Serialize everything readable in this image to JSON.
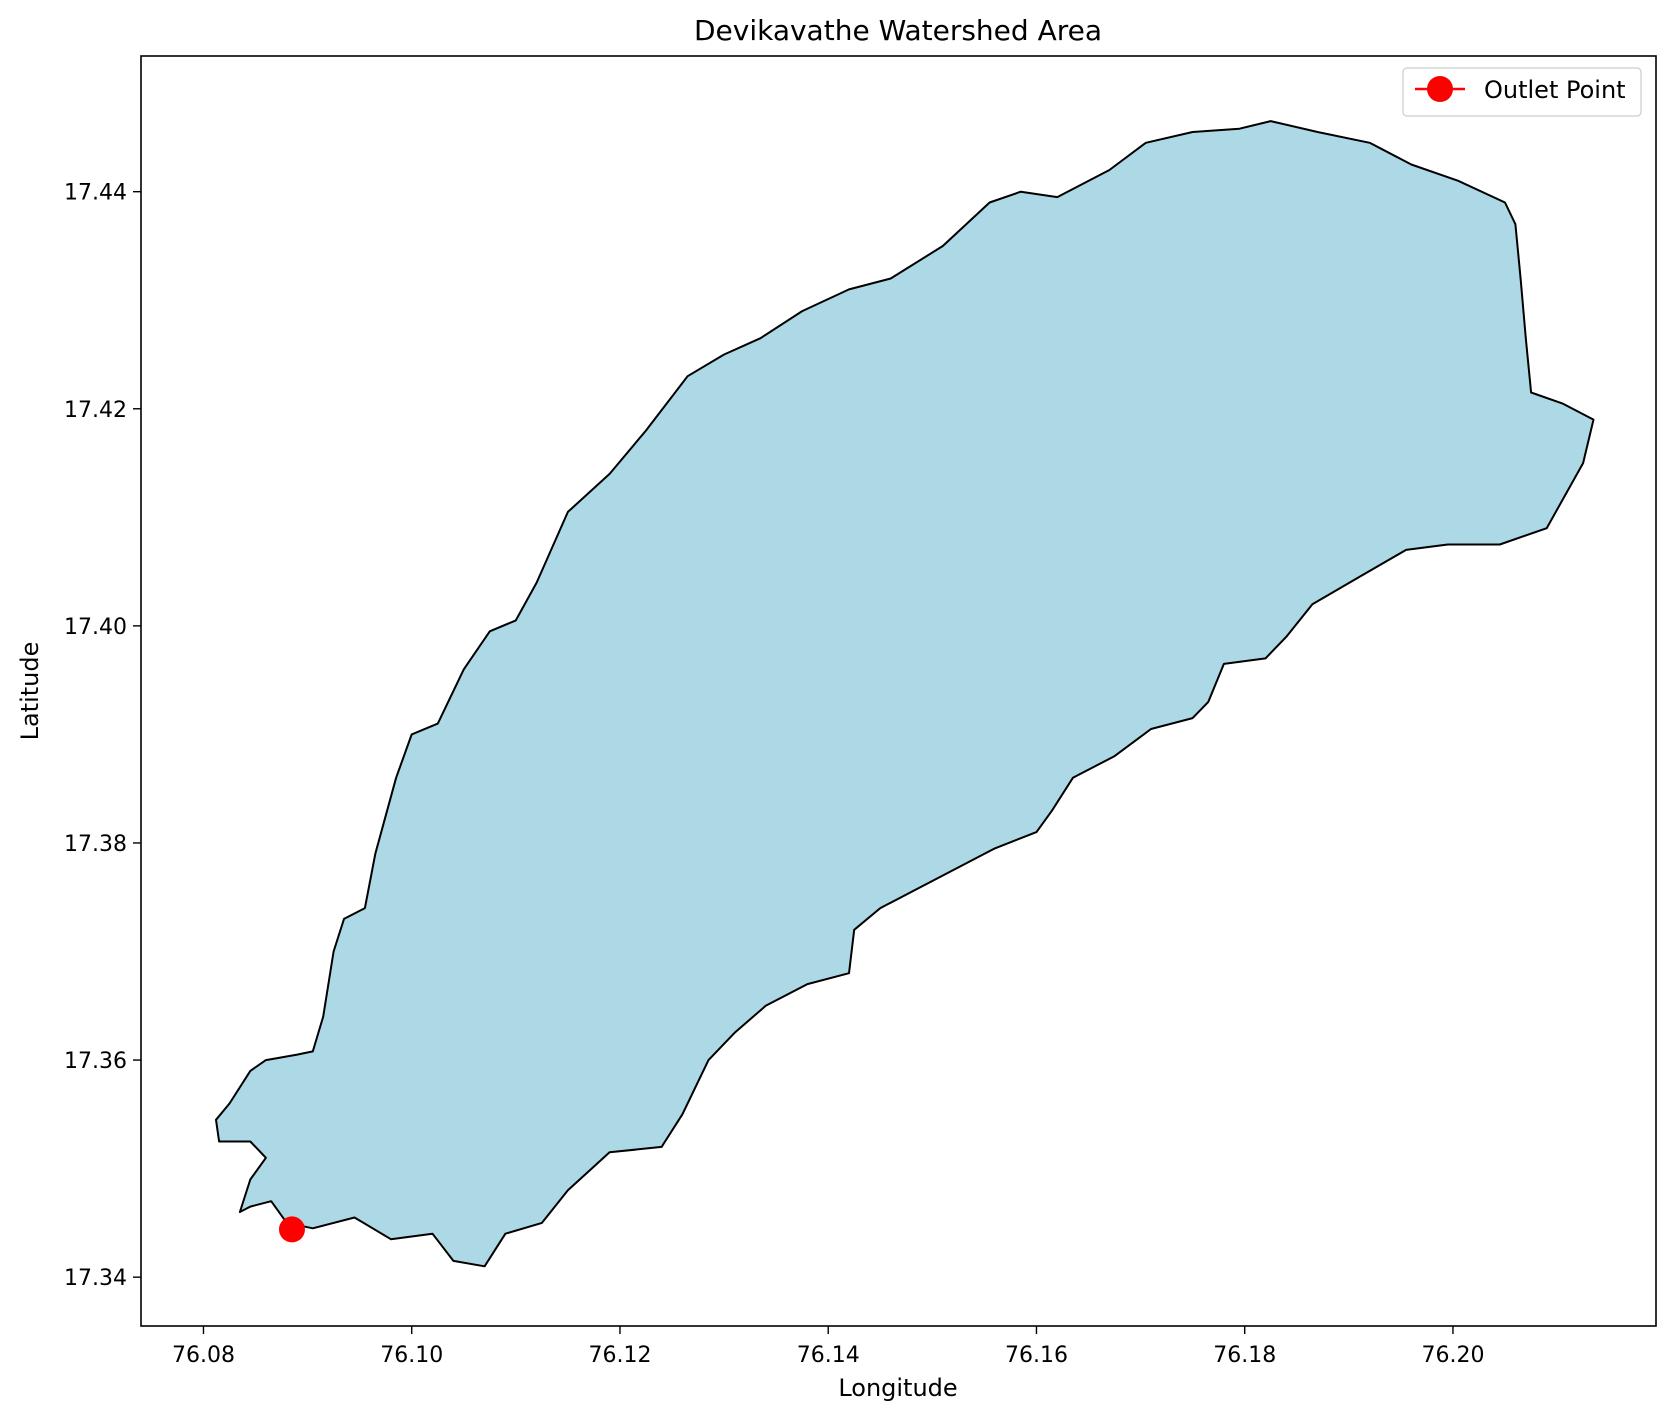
{
  "chart_data": {
    "type": "map",
    "title": "Devikavathe Watershed Area",
    "xlabel": "Longitude",
    "ylabel": "Latitude",
    "xlim": [
      76.074,
      76.2195
    ],
    "ylim": [
      17.3355,
      17.4525
    ],
    "x_ticks": [
      76.08,
      76.1,
      76.12,
      76.14,
      76.16,
      76.18,
      76.2
    ],
    "x_tick_labels": [
      "76.08",
      "76.10",
      "76.12",
      "76.14",
      "76.16",
      "76.18",
      "76.20"
    ],
    "y_ticks": [
      17.34,
      17.36,
      17.38,
      17.4,
      17.42,
      17.44
    ],
    "y_tick_labels": [
      "17.34",
      "17.36",
      "17.38",
      "17.40",
      "17.42",
      "17.44"
    ],
    "grid": false,
    "legend": {
      "placement": "top-right",
      "entries": [
        "Outlet Point"
      ]
    },
    "series": [
      {
        "kind": "polygon",
        "fill": "#add8e6",
        "stroke": "#000000",
        "points": [
          [
            76.0812,
            17.3545
          ],
          [
            76.0825,
            17.356
          ],
          [
            76.0845,
            17.359
          ],
          [
            76.086,
            17.36
          ],
          [
            76.089,
            17.3605
          ],
          [
            76.0905,
            17.3608
          ],
          [
            76.0915,
            17.364
          ],
          [
            76.0925,
            17.37
          ],
          [
            76.0935,
            17.373
          ],
          [
            76.0955,
            17.374
          ],
          [
            76.0965,
            17.379
          ],
          [
            76.0985,
            17.386
          ],
          [
            76.1,
            17.39
          ],
          [
            76.1025,
            17.391
          ],
          [
            76.105,
            17.396
          ],
          [
            76.1075,
            17.3995
          ],
          [
            76.11,
            17.4005
          ],
          [
            76.112,
            17.404
          ],
          [
            76.115,
            17.4105
          ],
          [
            76.119,
            17.414
          ],
          [
            76.1225,
            17.418
          ],
          [
            76.1265,
            17.423
          ],
          [
            76.13,
            17.425
          ],
          [
            76.1335,
            17.4265
          ],
          [
            76.1375,
            17.429
          ],
          [
            76.142,
            17.431
          ],
          [
            76.146,
            17.432
          ],
          [
            76.151,
            17.435
          ],
          [
            76.1555,
            17.439
          ],
          [
            76.1585,
            17.44
          ],
          [
            76.162,
            17.4395
          ],
          [
            76.167,
            17.442
          ],
          [
            76.1705,
            17.4445
          ],
          [
            76.175,
            17.4455
          ],
          [
            76.1795,
            17.4458
          ],
          [
            76.1825,
            17.4465
          ],
          [
            76.187,
            17.4455
          ],
          [
            76.192,
            17.4445
          ],
          [
            76.196,
            17.4425
          ],
          [
            76.2005,
            17.441
          ],
          [
            76.205,
            17.439
          ],
          [
            76.206,
            17.437
          ],
          [
            76.2065,
            17.432
          ],
          [
            76.207,
            17.4265
          ],
          [
            76.2075,
            17.4215
          ],
          [
            76.2105,
            17.4205
          ],
          [
            76.2135,
            17.419
          ],
          [
            76.2125,
            17.415
          ],
          [
            76.209,
            17.409
          ],
          [
            76.2045,
            17.4075
          ],
          [
            76.1995,
            17.4075
          ],
          [
            76.1955,
            17.407
          ],
          [
            76.191,
            17.4045
          ],
          [
            76.1865,
            17.402
          ],
          [
            76.184,
            17.399
          ],
          [
            76.182,
            17.397
          ],
          [
            76.178,
            17.3965
          ],
          [
            76.1765,
            17.393
          ],
          [
            76.175,
            17.3915
          ],
          [
            76.171,
            17.3905
          ],
          [
            76.1675,
            17.388
          ],
          [
            76.1635,
            17.386
          ],
          [
            76.1615,
            17.383
          ],
          [
            76.16,
            17.381
          ],
          [
            76.156,
            17.3795
          ],
          [
            76.15,
            17.3765
          ],
          [
            76.145,
            17.374
          ],
          [
            76.1425,
            17.372
          ],
          [
            76.142,
            17.368
          ],
          [
            76.138,
            17.367
          ],
          [
            76.134,
            17.365
          ],
          [
            76.131,
            17.3625
          ],
          [
            76.1285,
            17.36
          ],
          [
            76.126,
            17.355
          ],
          [
            76.124,
            17.352
          ],
          [
            76.119,
            17.3515
          ],
          [
            76.115,
            17.348
          ],
          [
            76.1125,
            17.345
          ],
          [
            76.109,
            17.344
          ],
          [
            76.107,
            17.341
          ],
          [
            76.104,
            17.3415
          ],
          [
            76.102,
            17.344
          ],
          [
            76.098,
            17.3435
          ],
          [
            76.0945,
            17.3455
          ],
          [
            76.0905,
            17.3445
          ],
          [
            76.088,
            17.345
          ],
          [
            76.0865,
            17.347
          ],
          [
            76.0845,
            17.3465
          ],
          [
            76.0835,
            17.346
          ],
          [
            76.0845,
            17.349
          ],
          [
            76.086,
            17.351
          ],
          [
            76.0845,
            17.3525
          ],
          [
            76.0815,
            17.3525
          ]
        ]
      },
      {
        "name": "Outlet Point",
        "kind": "point",
        "color": "#ff0000",
        "x": 76.0885,
        "y": 17.3444
      }
    ]
  }
}
